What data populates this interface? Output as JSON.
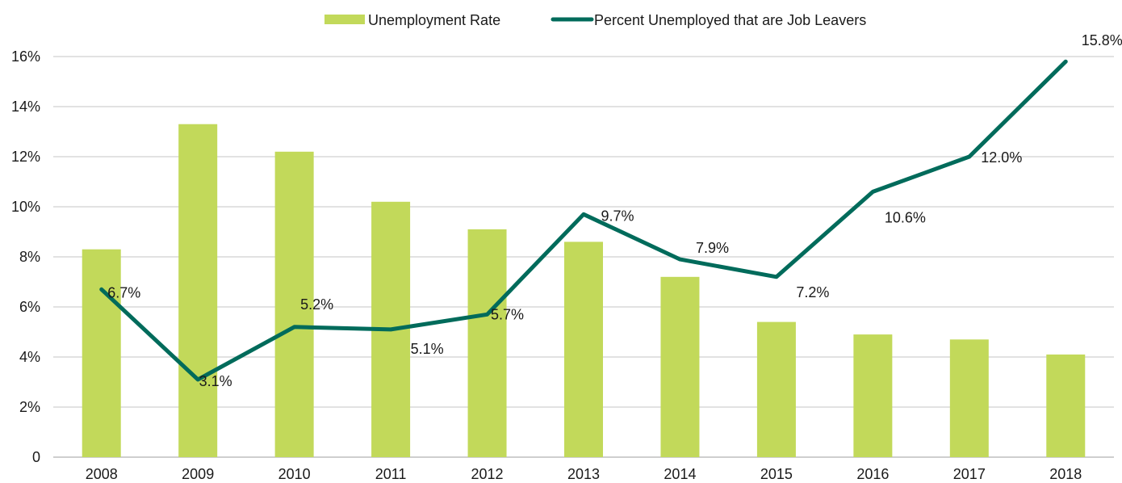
{
  "chart_data": {
    "type": "bar",
    "categories": [
      "2008",
      "2009",
      "2010",
      "2011",
      "2012",
      "2013",
      "2014",
      "2015",
      "2016",
      "2017",
      "2018"
    ],
    "series": [
      {
        "name": "Unemployment Rate",
        "type": "bar",
        "color": "#c2d95a",
        "values": [
          8.3,
          13.3,
          12.2,
          10.2,
          9.1,
          8.6,
          7.2,
          5.4,
          4.9,
          4.7,
          4.1
        ]
      },
      {
        "name": "Percent Unemployed that are Job Leavers",
        "type": "line",
        "color": "#006b5b",
        "values": [
          6.7,
          3.1,
          5.2,
          5.1,
          5.7,
          9.7,
          7.9,
          7.2,
          10.6,
          12.0,
          15.8
        ],
        "labels": [
          "6.7%",
          "3.1%",
          "5.2%",
          "5.1%",
          "5.7%",
          "9.7%",
          "7.9%",
          "7.2%",
          "10.6%",
          "12.0%",
          "15.8%"
        ]
      }
    ],
    "y_ticks": [
      {
        "value": 0,
        "label": "0"
      },
      {
        "value": 2,
        "label": "2%"
      },
      {
        "value": 4,
        "label": "4%"
      },
      {
        "value": 6,
        "label": "6%"
      },
      {
        "value": 8,
        "label": "8%"
      },
      {
        "value": 10,
        "label": "10%"
      },
      {
        "value": 12,
        "label": "12%"
      },
      {
        "value": 14,
        "label": "14%"
      },
      {
        "value": 16,
        "label": "16%"
      }
    ],
    "ylim": [
      0,
      16
    ],
    "grid": true,
    "legend_position": "top-center",
    "title": "",
    "xlabel": "",
    "ylabel": ""
  }
}
